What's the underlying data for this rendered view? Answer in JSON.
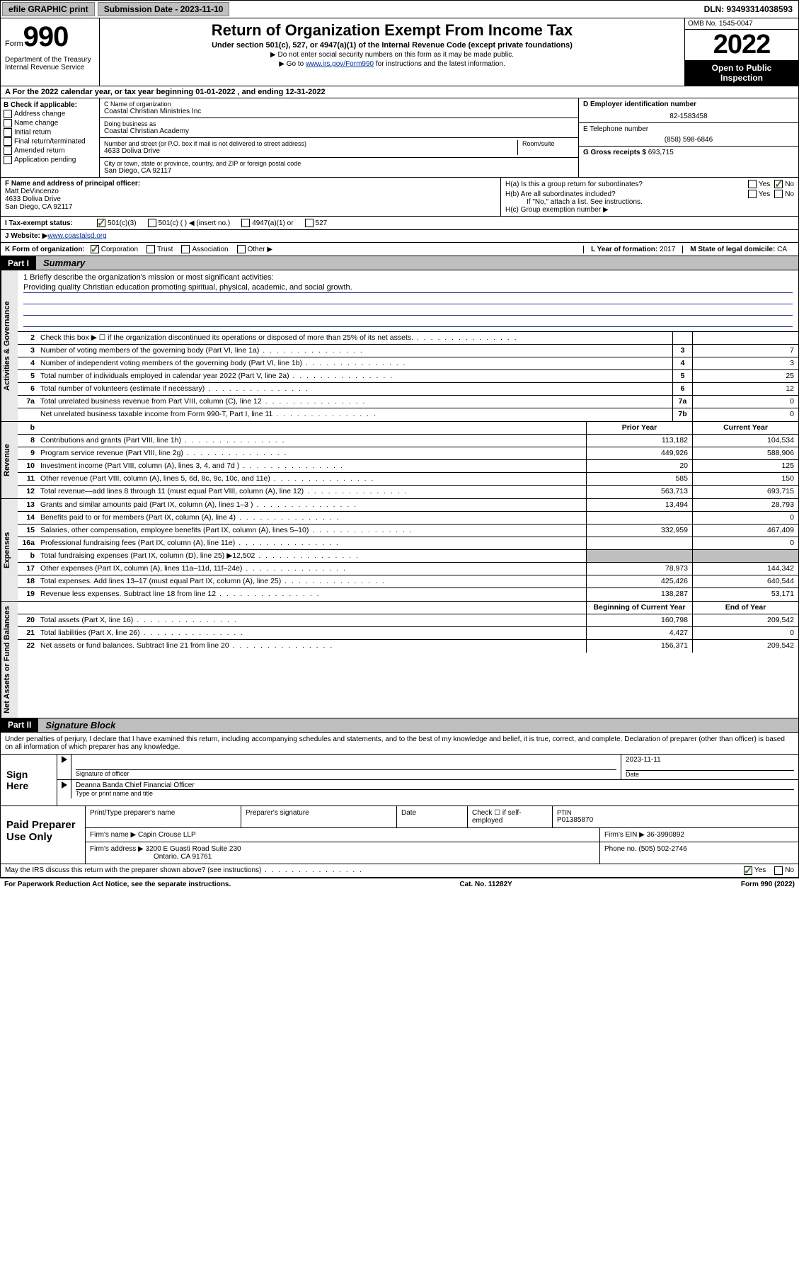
{
  "topbar": {
    "efile": "efile GRAPHIC print",
    "submission_label": "Submission Date - 2023-11-10",
    "dln": "DLN: 93493314038593"
  },
  "header": {
    "form_label": "Form",
    "form_number": "990",
    "dept": "Department of the Treasury Internal Revenue Service",
    "title": "Return of Organization Exempt From Income Tax",
    "subtitle": "Under section 501(c), 527, or 4947(a)(1) of the Internal Revenue Code (except private foundations)",
    "line1": "▶ Do not enter social security numbers on this form as it may be made public.",
    "line2_pre": "▶ Go to ",
    "line2_link": "www.irs.gov/Form990",
    "line2_post": " for instructions and the latest information.",
    "omb": "OMB No. 1545-0047",
    "year": "2022",
    "inspect1": "Open to Public",
    "inspect2": "Inspection"
  },
  "period": {
    "text": "A For the 2022 calendar year, or tax year beginning 01-01-2022   , and ending 12-31-2022"
  },
  "section_b": {
    "header": "B Check if applicable:",
    "items": [
      "Address change",
      "Name change",
      "Initial return",
      "Final return/terminated",
      "Amended return",
      "Application pending"
    ]
  },
  "section_c": {
    "name_label": "C Name of organization",
    "name": "Coastal Christian Ministries Inc",
    "dba_label": "Doing business as",
    "dba": "Coastal Christian Academy",
    "street_label": "Number and street (or P.O. box if mail is not delivered to street address)",
    "room_label": "Room/suite",
    "street": "4633 Doliva Drive",
    "city_label": "City or town, state or province, country, and ZIP or foreign postal code",
    "city": "San Diego, CA  92117"
  },
  "section_d": {
    "label": "D Employer identification number",
    "value": "82-1583458"
  },
  "section_e": {
    "label": "E Telephone number",
    "value": "(858) 598-6846"
  },
  "section_g": {
    "label": "G Gross receipts $",
    "value": "693,715"
  },
  "section_f": {
    "label": "F Name and address of principal officer:",
    "name": "Matt DeVincenzo",
    "street": "4633 Doliva Drive",
    "city": "San Diego, CA  92117"
  },
  "section_h": {
    "a_label": "H(a)  Is this a group return for subordinates?",
    "a_yes": "Yes",
    "a_no": "No",
    "b_label": "H(b)  Are all subordinates included?",
    "b_yes": "Yes",
    "b_no": "No",
    "b_note": "If \"No,\" attach a list. See instructions.",
    "c_label": "H(c)  Group exemption number ▶"
  },
  "section_i": {
    "label": "I   Tax-exempt status:",
    "opts": [
      "501(c)(3)",
      "501(c) (  ) ◀ (insert no.)",
      "4947(a)(1) or",
      "527"
    ]
  },
  "section_j": {
    "label": "J   Website: ▶ ",
    "value": "www.coastalsd.org"
  },
  "section_k": {
    "label": "K Form of organization:",
    "opts": [
      "Corporation",
      "Trust",
      "Association",
      "Other ▶"
    ]
  },
  "section_l": {
    "label": "L Year of formation: ",
    "value": "2017"
  },
  "section_m": {
    "label": "M State of legal domicile: ",
    "value": "CA"
  },
  "part1": {
    "label": "Part I",
    "title": "Summary"
  },
  "mission": {
    "q": "1   Briefly describe the organization's mission or most significant activities:",
    "text": "Providing quality Christian education promoting spiritual, physical, academic, and social growth."
  },
  "governance": {
    "tab": "Activities & Governance",
    "rows": [
      {
        "n": "2",
        "d": "Check this box ▶ ☐  if the organization discontinued its operations or disposed of more than 25% of its net assets.",
        "box": "",
        "v": ""
      },
      {
        "n": "3",
        "d": "Number of voting members of the governing body (Part VI, line 1a)",
        "box": "3",
        "v": "7"
      },
      {
        "n": "4",
        "d": "Number of independent voting members of the governing body (Part VI, line 1b)",
        "box": "4",
        "v": "3"
      },
      {
        "n": "5",
        "d": "Total number of individuals employed in calendar year 2022 (Part V, line 2a)",
        "box": "5",
        "v": "25"
      },
      {
        "n": "6",
        "d": "Total number of volunteers (estimate if necessary)",
        "box": "6",
        "v": "12"
      },
      {
        "n": "7a",
        "d": "Total unrelated business revenue from Part VIII, column (C), line 12",
        "box": "7a",
        "v": "0"
      },
      {
        "n": "",
        "d": "Net unrelated business taxable income from Form 990-T, Part I, line 11",
        "box": "7b",
        "v": "0"
      }
    ]
  },
  "twocol_header": {
    "b": "b",
    "prior": "Prior Year",
    "current": "Current Year"
  },
  "revenue": {
    "tab": "Revenue",
    "rows": [
      {
        "n": "8",
        "d": "Contributions and grants (Part VIII, line 1h)",
        "p": "113,182",
        "c": "104,534"
      },
      {
        "n": "9",
        "d": "Program service revenue (Part VIII, line 2g)",
        "p": "449,926",
        "c": "588,906"
      },
      {
        "n": "10",
        "d": "Investment income (Part VIII, column (A), lines 3, 4, and 7d )",
        "p": "20",
        "c": "125"
      },
      {
        "n": "11",
        "d": "Other revenue (Part VIII, column (A), lines 5, 6d, 8c, 9c, 10c, and 11e)",
        "p": "585",
        "c": "150"
      },
      {
        "n": "12",
        "d": "Total revenue—add lines 8 through 11 (must equal Part VIII, column (A), line 12)",
        "p": "563,713",
        "c": "693,715"
      }
    ]
  },
  "expenses": {
    "tab": "Expenses",
    "rows": [
      {
        "n": "13",
        "d": "Grants and similar amounts paid (Part IX, column (A), lines 1–3 )",
        "p": "13,494",
        "c": "28,793"
      },
      {
        "n": "14",
        "d": "Benefits paid to or for members (Part IX, column (A), line 4)",
        "p": "",
        "c": "0"
      },
      {
        "n": "15",
        "d": "Salaries, other compensation, employee benefits (Part IX, column (A), lines 5–10)",
        "p": "332,959",
        "c": "467,409"
      },
      {
        "n": "16a",
        "d": "Professional fundraising fees (Part IX, column (A), line 11e)",
        "p": "",
        "c": "0"
      },
      {
        "n": "b",
        "d": "Total fundraising expenses (Part IX, column (D), line 25) ▶12,502",
        "p": "GRAY",
        "c": "GRAY"
      },
      {
        "n": "17",
        "d": "Other expenses (Part IX, column (A), lines 11a–11d, 11f–24e)",
        "p": "78,973",
        "c": "144,342"
      },
      {
        "n": "18",
        "d": "Total expenses. Add lines 13–17 (must equal Part IX, column (A), line 25)",
        "p": "425,426",
        "c": "640,544"
      },
      {
        "n": "19",
        "d": "Revenue less expenses. Subtract line 18 from line 12",
        "p": "138,287",
        "c": "53,171"
      }
    ]
  },
  "netassets_header": {
    "begin": "Beginning of Current Year",
    "end": "End of Year"
  },
  "netassets": {
    "tab": "Net Assets or Fund Balances",
    "rows": [
      {
        "n": "20",
        "d": "Total assets (Part X, line 16)",
        "p": "160,798",
        "c": "209,542"
      },
      {
        "n": "21",
        "d": "Total liabilities (Part X, line 26)",
        "p": "4,427",
        "c": "0"
      },
      {
        "n": "22",
        "d": "Net assets or fund balances. Subtract line 21 from line 20",
        "p": "156,371",
        "c": "209,542"
      }
    ]
  },
  "part2": {
    "label": "Part II",
    "title": "Signature Block"
  },
  "sig_intro": "Under penalties of perjury, I declare that I have examined this return, including accompanying schedules and statements, and to the best of my knowledge and belief, it is true, correct, and complete. Declaration of preparer (other than officer) is based on all information of which preparer has any knowledge.",
  "sign": {
    "left": "Sign Here",
    "sig_label": "Signature of officer",
    "date_label": "Date",
    "date": "2023-11-11",
    "name": "Deanna Banda  Chief Financial Officer",
    "name_label": "Type or print name and title"
  },
  "prep": {
    "left": "Paid Preparer Use Only",
    "h1": "Print/Type preparer's name",
    "h2": "Preparer's signature",
    "h3": "Date",
    "h4_pre": "Check ☐ if self-employed",
    "h5_label": "PTIN",
    "ptin": "P01385870",
    "firm_name_label": "Firm's name    ▶",
    "firm_name": "Capin Crouse LLP",
    "firm_ein_label": "Firm's EIN ▶",
    "firm_ein": "36-3990892",
    "firm_addr_label": "Firm's address ▶",
    "firm_addr1": "3200 E Guasti Road Suite 230",
    "firm_addr2": "Ontario, CA  91761",
    "phone_label": "Phone no.",
    "phone": "(505) 502-2746"
  },
  "discuss": {
    "q": "May the IRS discuss this return with the preparer shown above? (see instructions)",
    "yes": "Yes",
    "no": "No"
  },
  "footer": {
    "left": "For Paperwork Reduction Act Notice, see the separate instructions.",
    "mid": "Cat. No. 11282Y",
    "right": "Form 990 (2022)"
  }
}
